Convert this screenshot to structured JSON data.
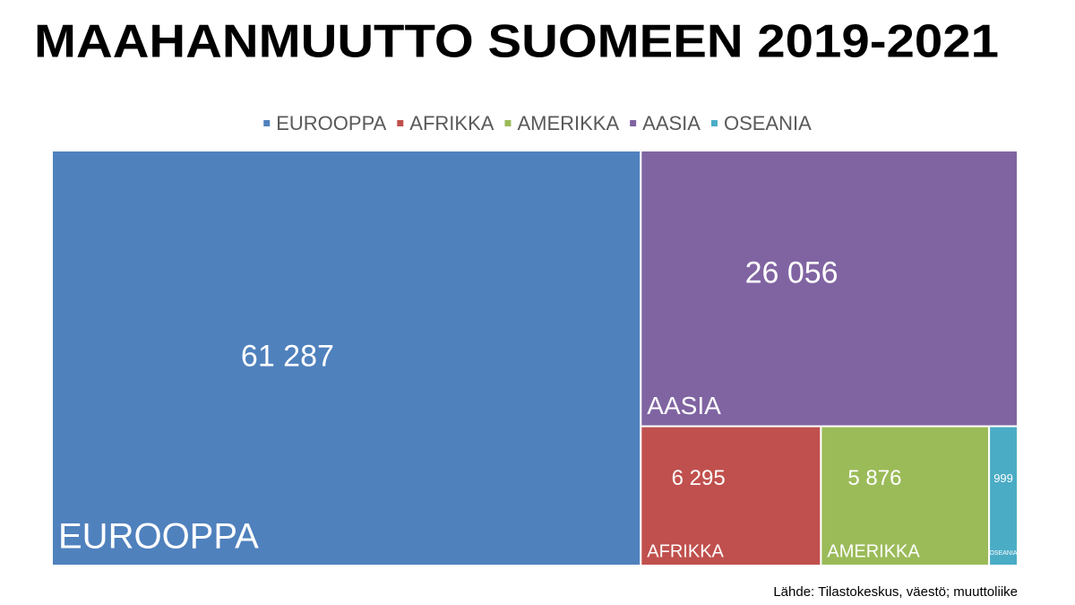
{
  "chart_data": {
    "type": "treemap",
    "title": "MAAHANMUUTTO SUOMEEN 2019-2021",
    "categories": [
      "EUROOPPA",
      "AFRIKKA",
      "AMERIKKA",
      "AASIA",
      "OSEANIA"
    ],
    "values": [
      61287,
      6295,
      5876,
      26056,
      999
    ],
    "value_labels": [
      "61 287",
      "6 295",
      "5 876",
      "26 056",
      "999"
    ],
    "colors": [
      "#4f81bd",
      "#c0504d",
      "#9bbb59",
      "#8064a2",
      "#4bacc6"
    ],
    "legend": "top",
    "source": "Lähde: Tilastokeskus, väestö; muuttoliike"
  }
}
